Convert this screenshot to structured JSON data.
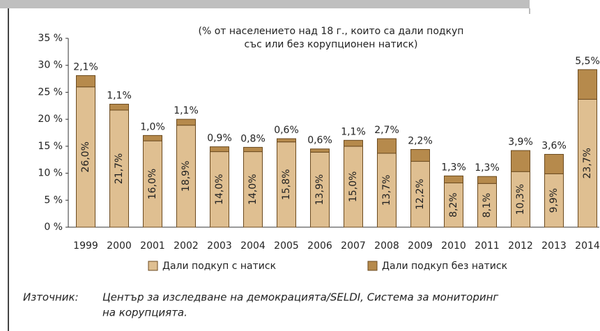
{
  "chart_data": {
    "type": "stacked_bar",
    "subtitle": [
      "(% от населението над 18 г., които са дали подкуп",
      "със или без корупционен натиск)"
    ],
    "categories": [
      "1999",
      "2000",
      "2001",
      "2002",
      "2003",
      "2004",
      "2005",
      "2006",
      "2007",
      "2008",
      "2009",
      "2010",
      "2011",
      "2012",
      "2013",
      "2014"
    ],
    "series": [
      {
        "name": "Дали подкуп с натиск",
        "color": "#dfbf91",
        "values": [
          26.0,
          21.7,
          16.0,
          18.9,
          14.0,
          14.0,
          15.8,
          13.9,
          15.0,
          13.7,
          12.2,
          8.2,
          8.1,
          10.3,
          9.9,
          23.7
        ],
        "value_labels": [
          "26,0%",
          "21,7%",
          "16,0%",
          "18,9%",
          "14,0%",
          "14,0%",
          "15,8%",
          "13,9%",
          "15,0%",
          "13,7%",
          "12,2%",
          "8,2%",
          "8,1%",
          "10,3%",
          "9,9%",
          "23,7%"
        ]
      },
      {
        "name": "Дали подкуп без натиск",
        "color": "#b68a4c",
        "values": [
          2.1,
          1.1,
          1.0,
          1.1,
          0.9,
          0.8,
          0.6,
          0.6,
          1.1,
          2.7,
          2.2,
          1.3,
          1.3,
          3.9,
          3.6,
          5.5
        ],
        "value_labels": [
          "2,1%",
          "1,1%",
          "1,0%",
          "1,1%",
          "0,9%",
          "0,8%",
          "0,6%",
          "0,6%",
          "1,1%",
          "2,7%",
          "2,2%",
          "1,3%",
          "1,3%",
          "3,9%",
          "3,6%",
          "5,5%"
        ]
      }
    ],
    "ylim": [
      0,
      35
    ],
    "yticks": [
      {
        "value": 0,
        "label": "0 %"
      },
      {
        "value": 5,
        "label": "5 %"
      },
      {
        "value": 10,
        "label": "10 %"
      },
      {
        "value": 15,
        "label": "15 %"
      },
      {
        "value": 20,
        "label": "20 %"
      },
      {
        "value": 25,
        "label": "25 %"
      },
      {
        "value": 30,
        "label": "30 %"
      },
      {
        "value": 35,
        "label": "35 %"
      }
    ],
    "grid": false
  },
  "source": {
    "label": "Източник:",
    "lines": [
      "Център за изследване на демокрацията/SELDI, Система за мониторинг",
      "на корупцията."
    ]
  }
}
